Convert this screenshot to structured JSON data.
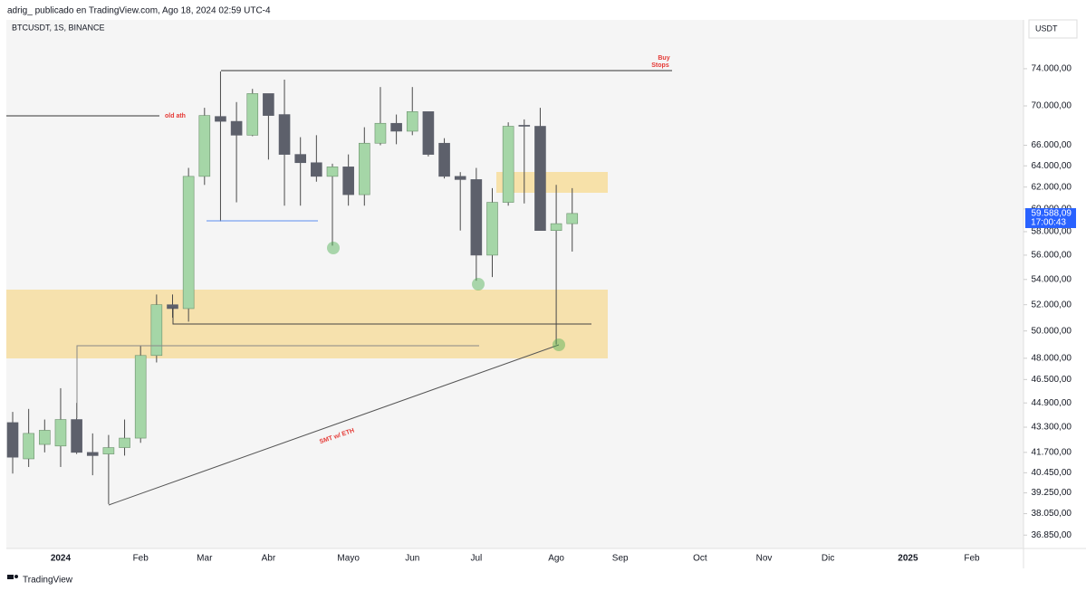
{
  "header": {
    "publisher": "adrig_ publicado en TradingView.com, Ago 18, 2024 02:59 UTC-4",
    "symbol": "BTCUSDT, 1S, BINANCE",
    "currency": "USDT"
  },
  "footer": {
    "brand": "TradingView"
  },
  "chart_data": {
    "type": "candlestick",
    "log_scale": true,
    "up_color": "#a5d6a7",
    "down_color": "#5d606b",
    "wick_color": "#4a4a4a",
    "categories": [
      null,
      null,
      null,
      "2024",
      null,
      null,
      null,
      null,
      "Feb",
      null,
      null,
      null,
      "Mar",
      null,
      null,
      null,
      "Abr",
      null,
      null,
      null,
      null,
      "Mayo",
      null,
      null,
      null,
      "Jun",
      null,
      null,
      null,
      "Jul",
      null,
      null,
      null,
      null,
      "Ago",
      null,
      null,
      null,
      "Sep",
      null,
      null,
      null,
      null,
      "Oct",
      null,
      null,
      null,
      "Nov",
      null,
      null,
      null,
      "Dic",
      null,
      null,
      null,
      null,
      "2025",
      null,
      null,
      null,
      "Feb",
      null
    ],
    "open": [
      43600,
      41300,
      42200,
      42100,
      43800,
      41700,
      41600,
      42000,
      42600,
      48200,
      52000,
      51700,
      63000,
      68900,
      68400,
      67000,
      71300,
      69100,
      65100,
      64300,
      63000,
      63900,
      61300,
      66200,
      68200,
      67400,
      69400,
      66200,
      63000,
      62700,
      56000,
      60600,
      68000,
      67900,
      58100,
      58700,
      null,
      null,
      null,
      null,
      null,
      null,
      null,
      null,
      null,
      null,
      null,
      null,
      null,
      null,
      null,
      null,
      null,
      null,
      null,
      null,
      null,
      null,
      null,
      null,
      null,
      null
    ],
    "high": [
      44300,
      44500,
      43800,
      45900,
      44900,
      42900,
      42800,
      43800,
      48900,
      52800,
      52800,
      63800,
      69800,
      73700,
      70400,
      71800,
      71000,
      72800,
      66800,
      67000,
      64200,
      65100,
      67800,
      72000,
      69100,
      72000,
      69100,
      66700,
      63400,
      63800,
      61900,
      68300,
      68600,
      69800,
      62200,
      61900,
      null,
      null,
      null,
      null,
      null,
      null,
      null,
      null,
      null,
      null,
      null,
      null,
      null,
      null,
      null,
      null,
      null,
      null,
      null,
      null,
      null,
      null,
      null,
      null,
      null,
      null
    ],
    "low": [
      40400,
      40800,
      41700,
      40800,
      41600,
      40300,
      38600,
      41500,
      42300,
      47700,
      51000,
      50700,
      62200,
      58900,
      60600,
      66900,
      64600,
      60300,
      60300,
      62500,
      56800,
      60300,
      60300,
      66000,
      66100,
      67000,
      64900,
      62800,
      58100,
      53900,
      54200,
      60300,
      60500,
      58100,
      49000,
      56300,
      null,
      null,
      null,
      null,
      null,
      null,
      null,
      null,
      null,
      null,
      null,
      null,
      null,
      null,
      null,
      null,
      null,
      null,
      null,
      null,
      null,
      null,
      null,
      null,
      null,
      null
    ],
    "close": [
      41400,
      42900,
      43100,
      43800,
      41700,
      41500,
      42000,
      42600,
      48200,
      52000,
      51700,
      63000,
      69000,
      68400,
      67000,
      71300,
      69000,
      65100,
      64300,
      63000,
      63900,
      61300,
      66200,
      68200,
      67400,
      69400,
      65100,
      63000,
      62700,
      56000,
      60600,
      67900,
      67900,
      58100,
      58700,
      59600,
      null,
      null,
      null,
      null,
      null,
      null,
      null,
      null,
      null,
      null,
      null,
      null,
      null,
      null,
      null,
      null,
      null,
      null,
      null,
      null,
      null,
      null,
      null,
      null,
      null,
      null
    ],
    "ylim": [
      36170,
      79600
    ],
    "yticks": [
      {
        "value": 74000,
        "label": "74.000,00"
      },
      {
        "value": 70000,
        "label": "70.000,00"
      },
      {
        "value": 66000,
        "label": "66.000,00"
      },
      {
        "value": 64000,
        "label": "64.000,00"
      },
      {
        "value": 62000,
        "label": "62.000,00"
      },
      {
        "value": 60000,
        "label": "60.000,00"
      },
      {
        "value": 58000,
        "label": "58.000,00"
      },
      {
        "value": 56000,
        "label": "56.000,00"
      },
      {
        "value": 54000,
        "label": "54.000,00"
      },
      {
        "value": 52000,
        "label": "52.000,00"
      },
      {
        "value": 50000,
        "label": "50.000,00"
      },
      {
        "value": 48000,
        "label": "48.000,00"
      },
      {
        "value": 46500,
        "label": "46.500,00"
      },
      {
        "value": 44900,
        "label": "44.900,00"
      },
      {
        "value": 43300,
        "label": "43.300,00"
      },
      {
        "value": 41700,
        "label": "41.700,00"
      },
      {
        "value": 40450,
        "label": "40.450,00"
      },
      {
        "value": 39250,
        "label": "39.250,00"
      },
      {
        "value": 38050,
        "label": "38.050,00"
      },
      {
        "value": 36850,
        "label": "36.850,00"
      }
    ],
    "last_price": {
      "value": 59588.09,
      "label": "59.588,09"
    },
    "countdown": "17:00:43",
    "annotations": {
      "buy_stops": [
        "Buy",
        "Stops"
      ],
      "old_ath": "old ath",
      "smt": "SMT w/ ETH"
    }
  }
}
